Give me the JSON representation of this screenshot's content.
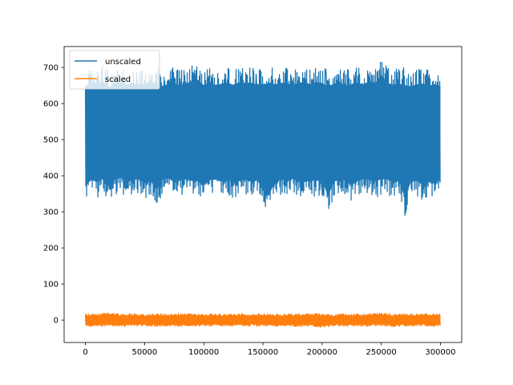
{
  "chart_data": {
    "type": "line",
    "title": "",
    "xlabel": "",
    "ylabel": "",
    "xlim": [
      -18000,
      318000
    ],
    "ylim": [
      -62,
      758
    ],
    "x_ticks": [
      0,
      50000,
      100000,
      150000,
      200000,
      250000,
      300000
    ],
    "x_tick_labels": [
      "0",
      "50000",
      "100000",
      "150000",
      "200000",
      "250000",
      "300000"
    ],
    "y_ticks": [
      0,
      100,
      200,
      300,
      400,
      500,
      600,
      700
    ],
    "y_tick_labels": [
      "0",
      "100",
      "200",
      "300",
      "400",
      "500",
      "600",
      "700"
    ],
    "grid": false,
    "legend_position": "upper-left",
    "x_range": [
      0,
      300000
    ],
    "series": [
      {
        "name": "unscaled",
        "color": "#1f77b4",
        "x": [
          0,
          5000,
          10000,
          15000,
          20000,
          25000,
          30000,
          35000,
          40000,
          45000,
          50000,
          55000,
          60000,
          65000,
          70000,
          75000,
          80000,
          85000,
          90000,
          95000,
          100000,
          105000,
          110000,
          115000,
          120000,
          125000,
          130000,
          135000,
          140000,
          145000,
          150000,
          155000,
          160000,
          165000,
          170000,
          175000,
          180000,
          185000,
          190000,
          195000,
          200000,
          205000,
          210000,
          215000,
          220000,
          225000,
          230000,
          235000,
          240000,
          245000,
          250000,
          255000,
          260000,
          265000,
          270000,
          275000,
          280000,
          285000,
          290000,
          295000,
          300000
        ],
        "min": [
          330,
          345,
          340,
          350,
          325,
          348,
          352,
          340,
          345,
          350,
          335,
          342,
          315,
          348,
          352,
          338,
          345,
          350,
          342,
          340,
          330,
          345,
          348,
          340,
          350,
          335,
          342,
          348,
          340,
          345,
          320,
          295,
          340,
          348,
          345,
          350,
          340,
          338,
          345,
          342,
          345,
          295,
          340,
          348,
          345,
          330,
          342,
          350,
          345,
          340,
          345,
          348,
          338,
          342,
          290,
          340,
          345,
          330,
          340,
          345,
          345
        ],
        "max": [
          690,
          700,
          695,
          705,
          690,
          698,
          702,
          695,
          700,
          692,
          698,
          705,
          700,
          690,
          695,
          700,
          692,
          698,
          705,
          710,
          695,
          700,
          692,
          698,
          700,
          695,
          702,
          698,
          700,
          695,
          700,
          705,
          695,
          700,
          698,
          692,
          700,
          705,
          695,
          702,
          700,
          695,
          698,
          700,
          692,
          698,
          700,
          695,
          705,
          700,
          725,
          700,
          695,
          698,
          700,
          690,
          695,
          700,
          692,
          695,
          690
        ]
      },
      {
        "name": "scaled",
        "color": "#ff7f0e",
        "x": [
          0,
          10000,
          20000,
          30000,
          40000,
          50000,
          60000,
          70000,
          80000,
          90000,
          100000,
          110000,
          120000,
          130000,
          140000,
          150000,
          160000,
          170000,
          180000,
          190000,
          200000,
          210000,
          220000,
          230000,
          240000,
          250000,
          260000,
          270000,
          280000,
          290000,
          300000
        ],
        "min": [
          -18,
          -16,
          -17,
          -18,
          -16,
          -17,
          -18,
          -16,
          -17,
          -18,
          -17,
          -16,
          -18,
          -17,
          -16,
          -18,
          -17,
          -16,
          -18,
          -17,
          -20,
          -17,
          -16,
          -18,
          -17,
          -16,
          -18,
          -17,
          -16,
          -18,
          -17
        ],
        "max": [
          18,
          17,
          20,
          17,
          18,
          16,
          18,
          17,
          19,
          17,
          18,
          17,
          16,
          18,
          17,
          19,
          17,
          18,
          17,
          18,
          17,
          16,
          18,
          17,
          18,
          20,
          17,
          18,
          17,
          18,
          17
        ]
      }
    ]
  }
}
